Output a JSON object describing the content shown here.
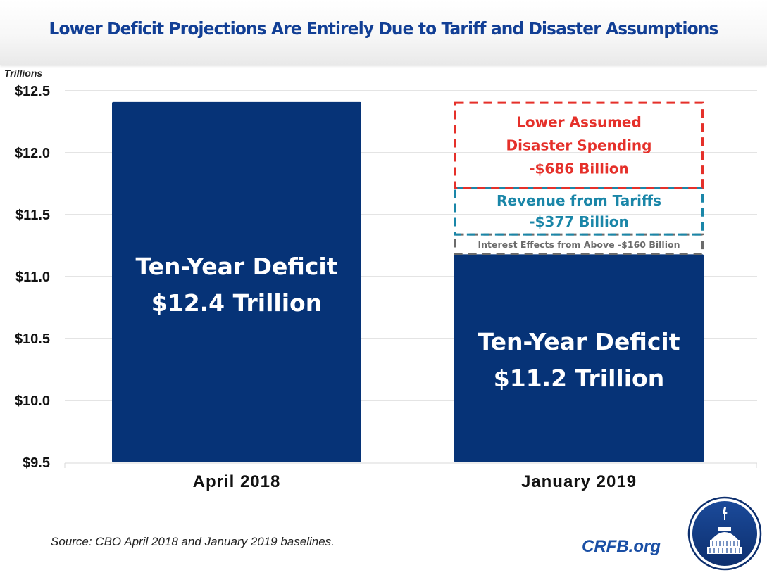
{
  "title": "Lower Deficit Projections Are Entirely Due to Tariff and Disaster Assumptions",
  "source": "Source: CBO April 2018 and January 2019 baselines.",
  "brand": "CRFB.org",
  "logo_icon": "capitol-dome-icon",
  "colors": {
    "title": "#123f95",
    "bar": "#063377",
    "disaster": "#e5302a",
    "tariffs": "#1a86a8",
    "interest": "#6b6b6b",
    "brand": "#1a4fa5"
  },
  "chart_data": {
    "type": "bar",
    "title": "Lower Deficit Projections Are Entirely Due to Tariff and Disaster Assumptions",
    "ylabel": "Trillions",
    "xlabel": "",
    "ylim": [
      9.5,
      12.5
    ],
    "yticks": [
      9.5,
      10.0,
      10.5,
      11.0,
      11.5,
      12.0,
      12.5
    ],
    "ytick_labels": [
      "$9.5",
      "$10.0",
      "$10.5",
      "$11.0",
      "$11.5",
      "$12.0",
      "$12.5"
    ],
    "grid": true,
    "categories": [
      "April 2018",
      "January 2019"
    ],
    "values": [
      12.4,
      11.2
    ],
    "bar_labels": [
      {
        "line1": "Ten-Year Deficit",
        "line2": "$12.4 Trillion"
      },
      {
        "line1": "Ten-Year Deficit",
        "line2": "$11.2 Trillion"
      }
    ],
    "reduction_segments": [
      {
        "name": "Interest Effects from Above",
        "value_billion": -160,
        "lines": [
          "Interest Effects from Above -$160 Billion"
        ],
        "style": "dashed",
        "color": "#6b6b6b"
      },
      {
        "name": "Revenue from Tariffs",
        "value_billion": -377,
        "lines": [
          "Revenue from Tariffs",
          "-$377 Billion"
        ],
        "style": "dashed",
        "color": "#1a86a8"
      },
      {
        "name": "Lower Assumed Disaster Spending",
        "value_billion": -686,
        "lines": [
          "Lower Assumed",
          "Disaster Spending",
          "-$686 Billion"
        ],
        "style": "dashed",
        "color": "#e5302a"
      }
    ]
  }
}
